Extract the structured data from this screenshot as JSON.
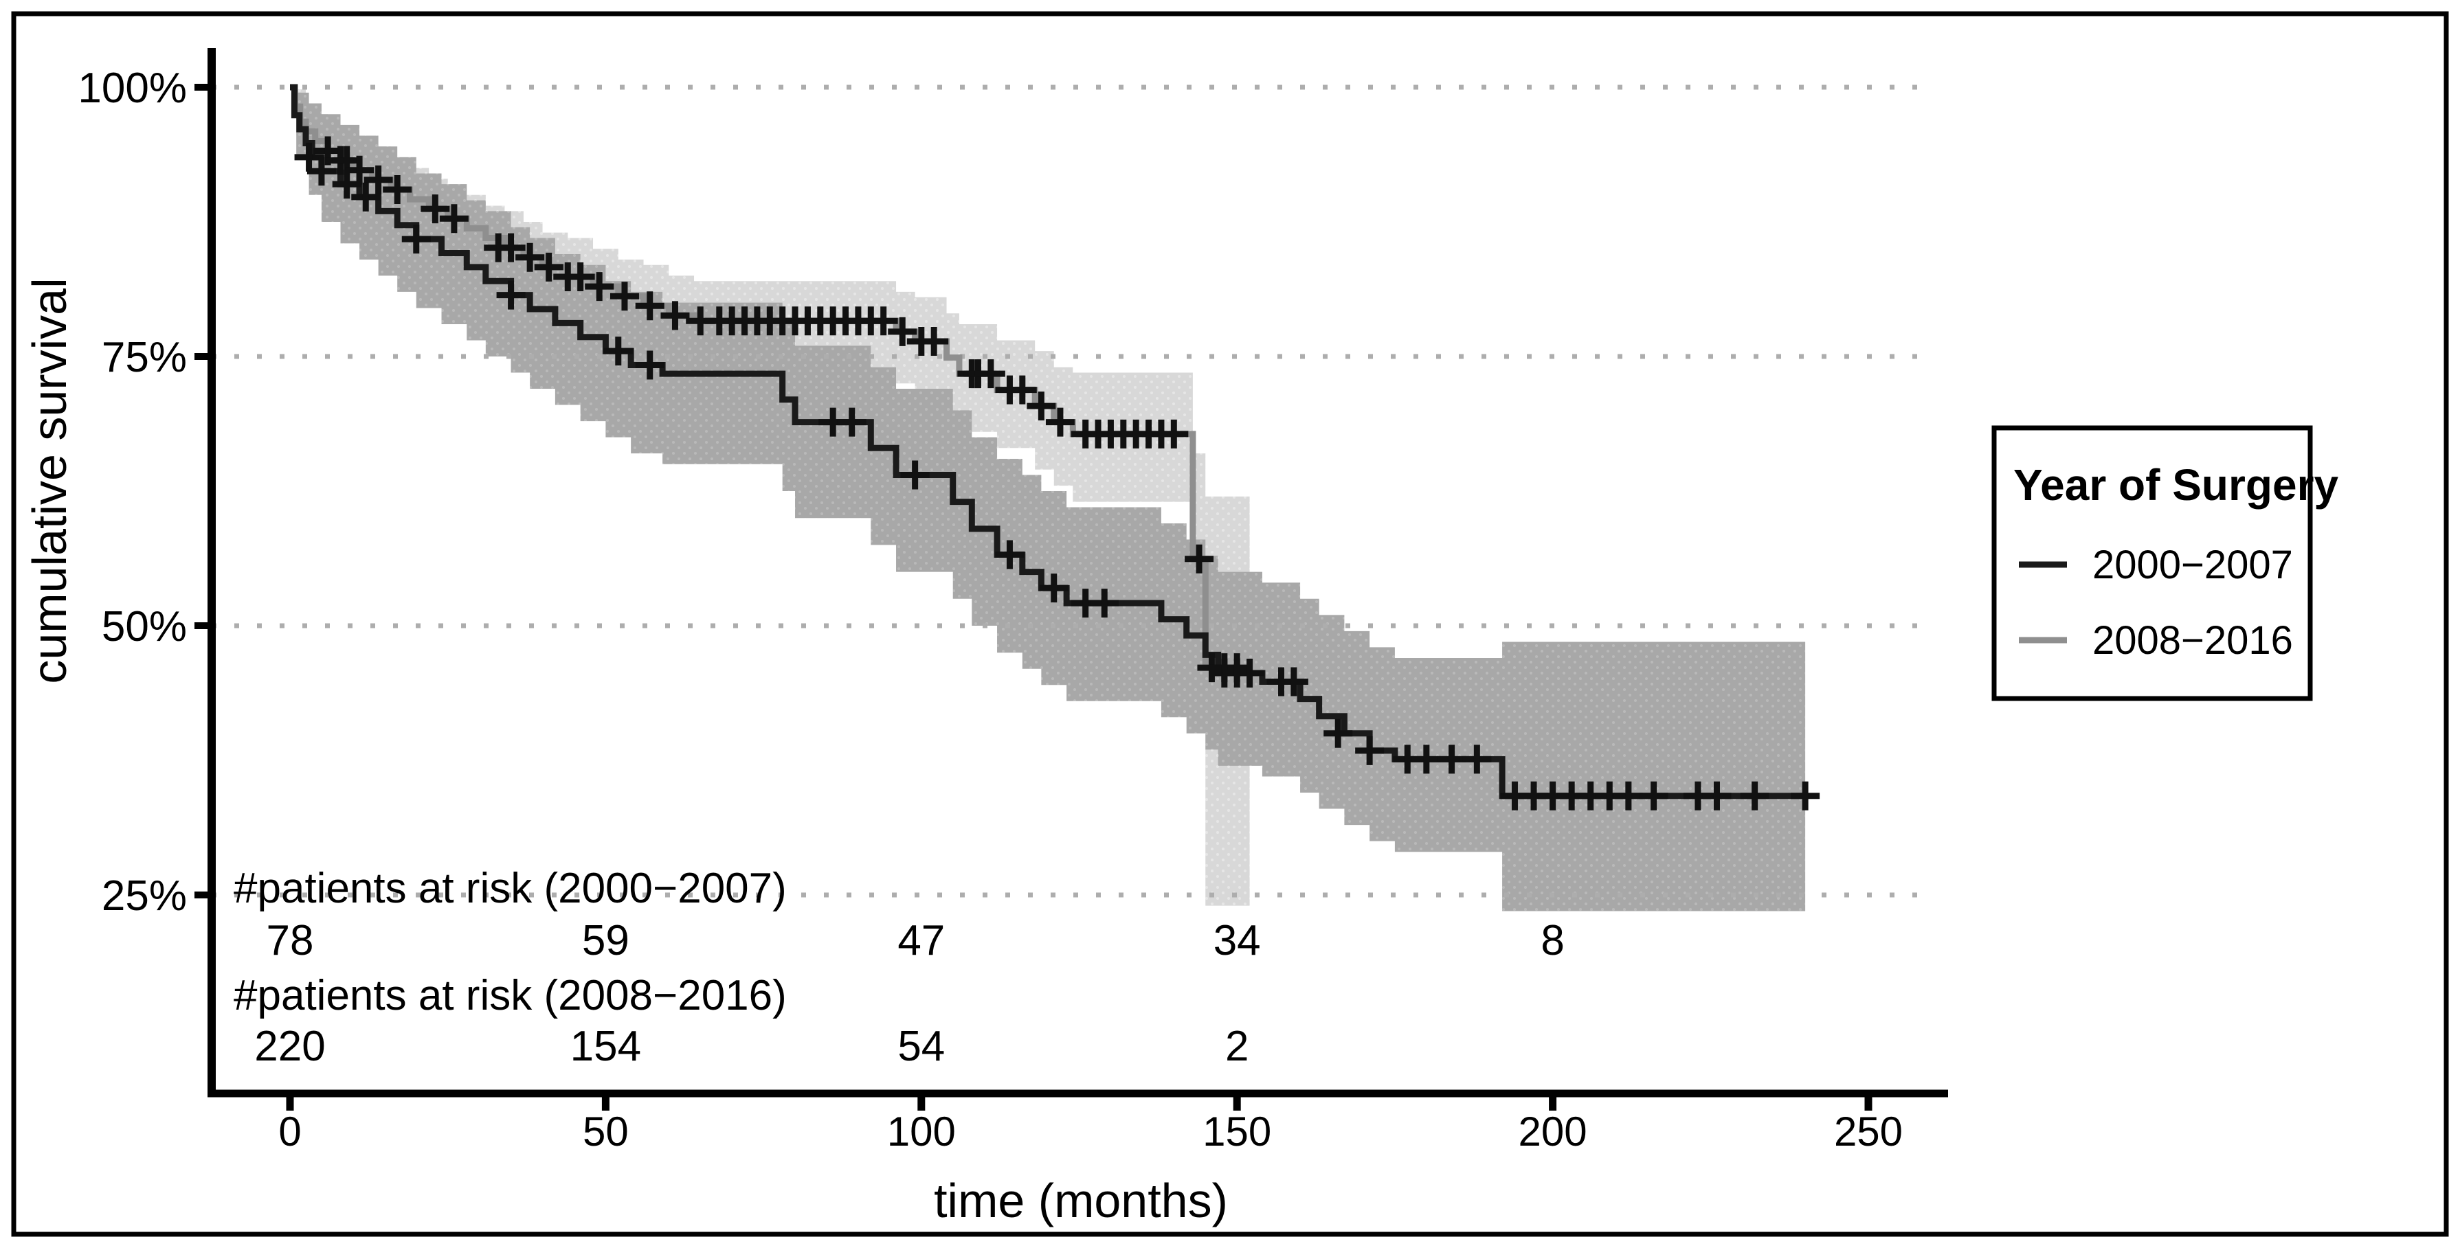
{
  "figure": {
    "background": "#ffffff",
    "border_color": "#000000"
  },
  "axes": {
    "y_label": "cumulative survival",
    "x_label": "time (months)",
    "y_tick_labels": [
      "100%",
      "75%",
      "50%",
      "25%"
    ],
    "y_tick_values": [
      100,
      75,
      50,
      25
    ],
    "x_tick_labels": [
      "0",
      "50",
      "100",
      "150",
      "200",
      "250"
    ],
    "x_tick_values": [
      0,
      50,
      100,
      150,
      200,
      250
    ],
    "gridline_color": "#adadad",
    "axis_color": "#000000"
  },
  "legend": {
    "title": "Year of Surgery",
    "entries": [
      {
        "label": "2000−2007",
        "color": "#1a1a1a"
      },
      {
        "label": "2008−2016",
        "color": "#8f8f8f"
      }
    ]
  },
  "risk_table": {
    "rows": [
      {
        "label": "#patients at risk (2000−2007)",
        "values": [
          {
            "t": 0,
            "n": "78"
          },
          {
            "t": 50,
            "n": "59"
          },
          {
            "t": 100,
            "n": "47"
          },
          {
            "t": 150,
            "n": "34"
          },
          {
            "t": 200,
            "n": "8"
          }
        ]
      },
      {
        "label": "#patients at risk (2008−2016)",
        "values": [
          {
            "t": 0,
            "n": "220"
          },
          {
            "t": 50,
            "n": "154"
          },
          {
            "t": 100,
            "n": "54"
          },
          {
            "t": 150,
            "n": "2"
          }
        ]
      }
    ]
  },
  "chart_data": {
    "type": "line",
    "subtype": "kaplan-meier-step",
    "title": "",
    "xlabel": "time (months)",
    "ylabel": "cumulative survival",
    "xlim": [
      0,
      262
    ],
    "ylim": [
      20,
      102
    ],
    "x_ticks": [
      0,
      50,
      100,
      150,
      200,
      250
    ],
    "y_ticks_pct": [
      100,
      75,
      50,
      25
    ],
    "grid": "horizontal dotted at 25/50/75/100%",
    "legend_position": "right",
    "series": [
      {
        "name": "2000−2007",
        "color": "#1a1a1a",
        "ci_color": "#a8a8a8",
        "steps": [
          [
            0,
            100
          ],
          [
            0.7,
            97.4
          ],
          [
            1.5,
            96.1
          ],
          [
            2.5,
            94.8
          ],
          [
            3.5,
            93.5
          ],
          [
            5,
            92.2
          ],
          [
            8,
            91.0
          ],
          [
            11,
            89.8
          ],
          [
            14,
            88.5
          ],
          [
            17,
            87.2
          ],
          [
            20,
            85.9
          ],
          [
            24,
            84.6
          ],
          [
            28,
            83.3
          ],
          [
            31,
            82.0
          ],
          [
            35,
            80.7
          ],
          [
            38,
            79.4
          ],
          [
            42,
            78.1
          ],
          [
            46,
            76.8
          ],
          [
            50,
            75.5
          ],
          [
            54,
            74.2
          ],
          [
            59,
            73.4
          ],
          [
            78,
            71.0
          ],
          [
            80,
            68.9
          ],
          [
            92,
            66.5
          ],
          [
            96,
            64.0
          ],
          [
            105,
            61.5
          ],
          [
            108,
            59.0
          ],
          [
            112,
            56.6
          ],
          [
            116,
            55.0
          ],
          [
            119,
            53.5
          ],
          [
            123,
            52.1
          ],
          [
            138,
            50.6
          ],
          [
            142,
            49.1
          ],
          [
            145,
            47.3
          ],
          [
            147,
            45.6
          ],
          [
            154,
            44.8
          ],
          [
            160,
            43.2
          ],
          [
            163,
            41.6
          ],
          [
            167,
            40.0
          ],
          [
            171,
            38.4
          ],
          [
            175,
            37.6
          ],
          [
            192,
            34.2
          ],
          [
            240,
            34.2
          ]
        ],
        "censors": [
          [
            3,
            93.5
          ],
          [
            5,
            92.2
          ],
          [
            9,
            91.0
          ],
          [
            12,
            89.8
          ],
          [
            20,
            85.9
          ],
          [
            35,
            80.7
          ],
          [
            52,
            75.5
          ],
          [
            57,
            74.2
          ],
          [
            86,
            68.9
          ],
          [
            89,
            68.9
          ],
          [
            99,
            64.0
          ],
          [
            114,
            56.6
          ],
          [
            121,
            53.5
          ],
          [
            126,
            52.1
          ],
          [
            129,
            52.1
          ],
          [
            148,
            45.6
          ],
          [
            150,
            45.6
          ],
          [
            152,
            45.6
          ],
          [
            157,
            44.8
          ],
          [
            159,
            44.8
          ],
          [
            166,
            40.0
          ],
          [
            171,
            38.4
          ],
          [
            177,
            37.6
          ],
          [
            180,
            37.6
          ],
          [
            184,
            37.6
          ],
          [
            188,
            37.6
          ],
          [
            194,
            34.2
          ],
          [
            197,
            34.2
          ],
          [
            200,
            34.2
          ],
          [
            203,
            34.2
          ],
          [
            206,
            34.2
          ],
          [
            209,
            34.2
          ],
          [
            212,
            34.2
          ],
          [
            216,
            34.2
          ],
          [
            223,
            34.2
          ],
          [
            226,
            34.2
          ],
          [
            232,
            34.2
          ],
          [
            240,
            34.2
          ]
        ],
        "ci_steps": [
          [
            0,
            100,
            100
          ],
          [
            1,
            93.5,
            99.5
          ],
          [
            3,
            90,
            98.5
          ],
          [
            5,
            87.5,
            97.5
          ],
          [
            8,
            85.5,
            96.5
          ],
          [
            11,
            84,
            95.5
          ],
          [
            14,
            82.5,
            94.5
          ],
          [
            17,
            81,
            93.5
          ],
          [
            20,
            79.5,
            92
          ],
          [
            24,
            78,
            91
          ],
          [
            28,
            76.5,
            89.5
          ],
          [
            31,
            75,
            88.5
          ],
          [
            35,
            73.5,
            87
          ],
          [
            38,
            72,
            86
          ],
          [
            42,
            70.5,
            84.5
          ],
          [
            46,
            69,
            83.5
          ],
          [
            50,
            67.5,
            82
          ],
          [
            54,
            66,
            81
          ],
          [
            59,
            65,
            80
          ],
          [
            78,
            62.5,
            78
          ],
          [
            80,
            60,
            76
          ],
          [
            92,
            57.5,
            74
          ],
          [
            96,
            55,
            72
          ],
          [
            105,
            52.5,
            70
          ],
          [
            108,
            50,
            67.5
          ],
          [
            112,
            47.5,
            65.5
          ],
          [
            116,
            46,
            64
          ],
          [
            119,
            44.5,
            62.5
          ],
          [
            123,
            43,
            61
          ],
          [
            138,
            41.5,
            59.5
          ],
          [
            142,
            40,
            58
          ],
          [
            145,
            38.5,
            56.5
          ],
          [
            147,
            37,
            55
          ],
          [
            154,
            36,
            54
          ],
          [
            160,
            34.5,
            52.5
          ],
          [
            163,
            33,
            51
          ],
          [
            167,
            31.5,
            49.5
          ],
          [
            171,
            30,
            48
          ],
          [
            175,
            29,
            47
          ],
          [
            192,
            23.5,
            48.5
          ],
          [
            240,
            23.5,
            48.5
          ]
        ]
      },
      {
        "name": "2008−2016",
        "color": "#8f8f8f",
        "ci_color": "#d8d8d8",
        "steps": [
          [
            0,
            100
          ],
          [
            0.8,
            98.2
          ],
          [
            1.6,
            96.8
          ],
          [
            2.5,
            95.9
          ],
          [
            4,
            95.0
          ],
          [
            6,
            94.1
          ],
          [
            8,
            93.2
          ],
          [
            10,
            92.3
          ],
          [
            13,
            91.4
          ],
          [
            16,
            90.5
          ],
          [
            19,
            89.6
          ],
          [
            22,
            88.7
          ],
          [
            25,
            87.8
          ],
          [
            28,
            86.9
          ],
          [
            31,
            86.0
          ],
          [
            34,
            85.1
          ],
          [
            37,
            84.2
          ],
          [
            40,
            83.3
          ],
          [
            44,
            82.4
          ],
          [
            48,
            81.5
          ],
          [
            52,
            80.6
          ],
          [
            56,
            79.7
          ],
          [
            60,
            78.8
          ],
          [
            64,
            78.3
          ],
          [
            96,
            77.3
          ],
          [
            99,
            76.4
          ],
          [
            104,
            74.9
          ],
          [
            106,
            73.4
          ],
          [
            112,
            71.9
          ],
          [
            118,
            70.4
          ],
          [
            121,
            68.9
          ],
          [
            124,
            67.8
          ],
          [
            143,
            56.2
          ],
          [
            145,
            46.1
          ],
          [
            152,
            46.1
          ]
        ],
        "censors": [
          [
            6,
            94.1
          ],
          [
            8,
            93.2
          ],
          [
            9,
            93.2
          ],
          [
            11,
            92.3
          ],
          [
            14,
            91.4
          ],
          [
            17,
            90.5
          ],
          [
            23,
            88.7
          ],
          [
            26,
            87.8
          ],
          [
            33,
            85.1
          ],
          [
            35,
            85.1
          ],
          [
            38,
            84.2
          ],
          [
            41,
            83.3
          ],
          [
            44,
            82.4
          ],
          [
            46,
            82.4
          ],
          [
            49,
            81.5
          ],
          [
            53,
            80.6
          ],
          [
            57,
            79.7
          ],
          [
            61,
            78.8
          ],
          [
            65,
            78.3
          ],
          [
            68,
            78.3
          ],
          [
            70,
            78.3
          ],
          [
            72,
            78.3
          ],
          [
            74,
            78.3
          ],
          [
            76,
            78.3
          ],
          [
            78,
            78.3
          ],
          [
            80,
            78.3
          ],
          [
            82,
            78.3
          ],
          [
            84,
            78.3
          ],
          [
            86,
            78.3
          ],
          [
            88,
            78.3
          ],
          [
            90,
            78.3
          ],
          [
            92,
            78.3
          ],
          [
            94,
            78.3
          ],
          [
            97,
            77.3
          ],
          [
            100,
            76.4
          ],
          [
            102,
            76.4
          ],
          [
            108,
            73.4
          ],
          [
            109,
            73.4
          ],
          [
            111,
            73.4
          ],
          [
            114,
            71.9
          ],
          [
            116,
            71.9
          ],
          [
            119,
            70.4
          ],
          [
            122,
            68.9
          ],
          [
            126,
            67.8
          ],
          [
            128,
            67.8
          ],
          [
            130,
            67.8
          ],
          [
            132,
            67.8
          ],
          [
            134,
            67.8
          ],
          [
            136,
            67.8
          ],
          [
            138,
            67.8
          ],
          [
            140,
            67.8
          ],
          [
            144,
            56.2
          ],
          [
            146,
            46.1
          ],
          [
            148,
            46.1
          ],
          [
            150,
            46.1
          ]
        ],
        "ci_steps": [
          [
            0,
            100,
            100
          ],
          [
            1,
            95.5,
            99.8
          ],
          [
            2.5,
            93.5,
            98.5
          ],
          [
            4,
            92.5,
            97.5
          ],
          [
            6,
            91.5,
            96.5
          ],
          [
            8,
            90.5,
            96
          ],
          [
            10,
            89.5,
            95
          ],
          [
            13,
            88.5,
            94.5
          ],
          [
            16,
            87.5,
            93.5
          ],
          [
            19,
            86.5,
            92.5
          ],
          [
            22,
            85.5,
            91.5
          ],
          [
            25,
            84.5,
            91
          ],
          [
            28,
            83.5,
            90
          ],
          [
            31,
            82.5,
            89
          ],
          [
            34,
            81.5,
            88.5
          ],
          [
            37,
            80.5,
            87.5
          ],
          [
            40,
            79.5,
            86.5
          ],
          [
            44,
            78.5,
            86
          ],
          [
            48,
            77.5,
            85
          ],
          [
            52,
            76.5,
            84
          ],
          [
            56,
            75.5,
            83.5
          ],
          [
            60,
            74.5,
            82.5
          ],
          [
            64,
            74,
            82
          ],
          [
            96,
            72.5,
            81
          ],
          [
            99,
            71.5,
            80.5
          ],
          [
            104,
            70,
            79
          ],
          [
            106,
            68,
            78
          ],
          [
            112,
            66.5,
            76.5
          ],
          [
            118,
            64.5,
            75.5
          ],
          [
            121,
            63,
            74
          ],
          [
            124,
            61.5,
            73.5
          ],
          [
            143,
            47,
            66
          ],
          [
            145,
            24,
            62
          ],
          [
            152,
            24,
            62
          ]
        ]
      }
    ]
  }
}
